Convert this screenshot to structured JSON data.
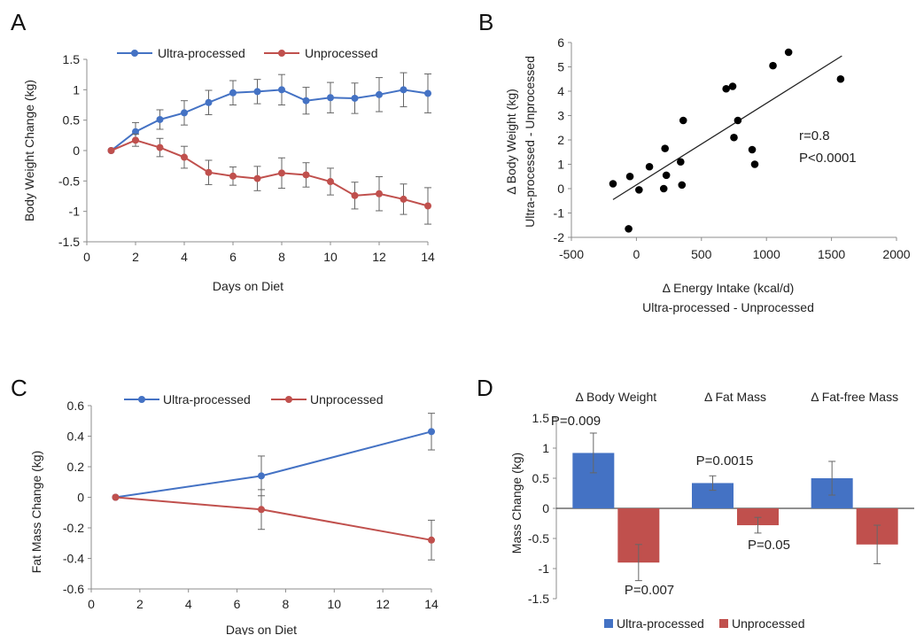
{
  "colors": {
    "ultra": "#4472C4",
    "unprocessed": "#C0504D",
    "axis": "#8c8c8c",
    "errbar": "#666666"
  },
  "chart_data": [
    {
      "panel": "A",
      "type": "line",
      "xlabel": "Days on Diet",
      "ylabel": "Body Weight Change (kg)",
      "xlim": [
        0,
        14
      ],
      "ylim": [
        -1.5,
        1.5
      ],
      "xticks": [
        "0",
        "2",
        "4",
        "6",
        "8",
        "10",
        "12",
        "14"
      ],
      "yticks": [
        "-1.5",
        "-1",
        "-0.5",
        "0",
        "0.5",
        "1",
        "1.5"
      ],
      "legend_position": "top",
      "x": [
        1,
        2,
        3,
        4,
        5,
        6,
        7,
        8,
        9,
        10,
        11,
        12,
        13,
        14
      ],
      "series": [
        {
          "name": "Ultra-processed",
          "values": [
            0,
            0.31,
            0.51,
            0.62,
            0.79,
            0.95,
            0.97,
            1.0,
            0.82,
            0.87,
            0.86,
            0.92,
            1.0,
            0.94
          ],
          "errors": [
            0,
            0.15,
            0.16,
            0.2,
            0.2,
            0.2,
            0.2,
            0.25,
            0.22,
            0.25,
            0.25,
            0.28,
            0.28,
            0.32
          ]
        },
        {
          "name": "Unprocessed",
          "values": [
            0,
            0.17,
            0.05,
            -0.11,
            -0.36,
            -0.42,
            -0.46,
            -0.37,
            -0.4,
            -0.51,
            -0.74,
            -0.71,
            -0.8,
            -0.91
          ],
          "errors": [
            0,
            0.1,
            0.15,
            0.18,
            0.2,
            0.15,
            0.2,
            0.25,
            0.2,
            0.22,
            0.22,
            0.28,
            0.25,
            0.3
          ]
        }
      ]
    },
    {
      "panel": "B",
      "type": "scatter",
      "xlabel": "Δ Energy Intake (kcal/d)",
      "xlabel2": "Ultra-processed - Unprocessed",
      "ylabel": "Δ Body Weight (kg)",
      "ylabel2": "Ultra-processed - Unprocessed",
      "xlim": [
        -500,
        2000
      ],
      "ylim": [
        -2,
        6
      ],
      "xticks": [
        "-500",
        "0",
        "500",
        "1000",
        "1500",
        "2000"
      ],
      "yticks": [
        "-2",
        "-1",
        "0",
        "1",
        "2",
        "3",
        "4",
        "5",
        "6"
      ],
      "annotations": [
        "r=0.8",
        "P<0.0001"
      ],
      "points": [
        [
          -180,
          0.2
        ],
        [
          -60,
          -1.65
        ],
        [
          -50,
          0.5
        ],
        [
          20,
          -0.05
        ],
        [
          100,
          0.9
        ],
        [
          210,
          0.0
        ],
        [
          220,
          1.65
        ],
        [
          230,
          0.55
        ],
        [
          340,
          1.1
        ],
        [
          350,
          0.15
        ],
        [
          360,
          2.8
        ],
        [
          690,
          4.1
        ],
        [
          740,
          4.2
        ],
        [
          750,
          2.1
        ],
        [
          780,
          2.8
        ],
        [
          890,
          1.6
        ],
        [
          910,
          1.0
        ],
        [
          1050,
          5.05
        ],
        [
          1170,
          5.6
        ],
        [
          1570,
          4.5
        ]
      ],
      "fit_line": {
        "x": [
          -180,
          1580
        ],
        "y": [
          -0.45,
          5.45
        ]
      }
    },
    {
      "panel": "C",
      "type": "line",
      "xlabel": "Days on Diet",
      "ylabel": "Fat Mass Change (kg)",
      "xlim": [
        0,
        14
      ],
      "ylim": [
        -0.6,
        0.6
      ],
      "xticks": [
        "0",
        "2",
        "4",
        "6",
        "8",
        "10",
        "12",
        "14"
      ],
      "yticks": [
        "-0.6",
        "-0.4",
        "-0.2",
        "0",
        "0.2",
        "0.4",
        "0.6"
      ],
      "legend_position": "top",
      "x": [
        1,
        7,
        14
      ],
      "series": [
        {
          "name": "Ultra-processed",
          "values": [
            0,
            0.14,
            0.43
          ],
          "errors": [
            0,
            0.13,
            0.12
          ]
        },
        {
          "name": "Unprocessed",
          "values": [
            0,
            -0.08,
            -0.28
          ],
          "errors": [
            0,
            0.13,
            0.13
          ]
        }
      ]
    },
    {
      "panel": "D",
      "type": "bar",
      "ylabel": "Mass Change (kg)",
      "ylim": [
        -1.5,
        1.5
      ],
      "yticks": [
        "-1.5",
        "-1",
        "-0.5",
        "0",
        "0.5",
        "1",
        "1.5"
      ],
      "categories": [
        "Δ Body Weight",
        "Δ Fat Mass",
        "Δ Fat-free Mass"
      ],
      "legend_position": "bottom",
      "series": [
        {
          "name": "Ultra-processed",
          "values": [
            0.92,
            0.42,
            0.5
          ],
          "errors": [
            0.33,
            0.12,
            0.28
          ]
        },
        {
          "name": "Unprocessed",
          "values": [
            -0.9,
            -0.28,
            -0.6
          ],
          "errors": [
            0.3,
            0.13,
            0.32
          ]
        }
      ],
      "annotations": [
        "P=0.009",
        "P=0.007",
        "P=0.0015",
        "P=0.05"
      ]
    }
  ]
}
